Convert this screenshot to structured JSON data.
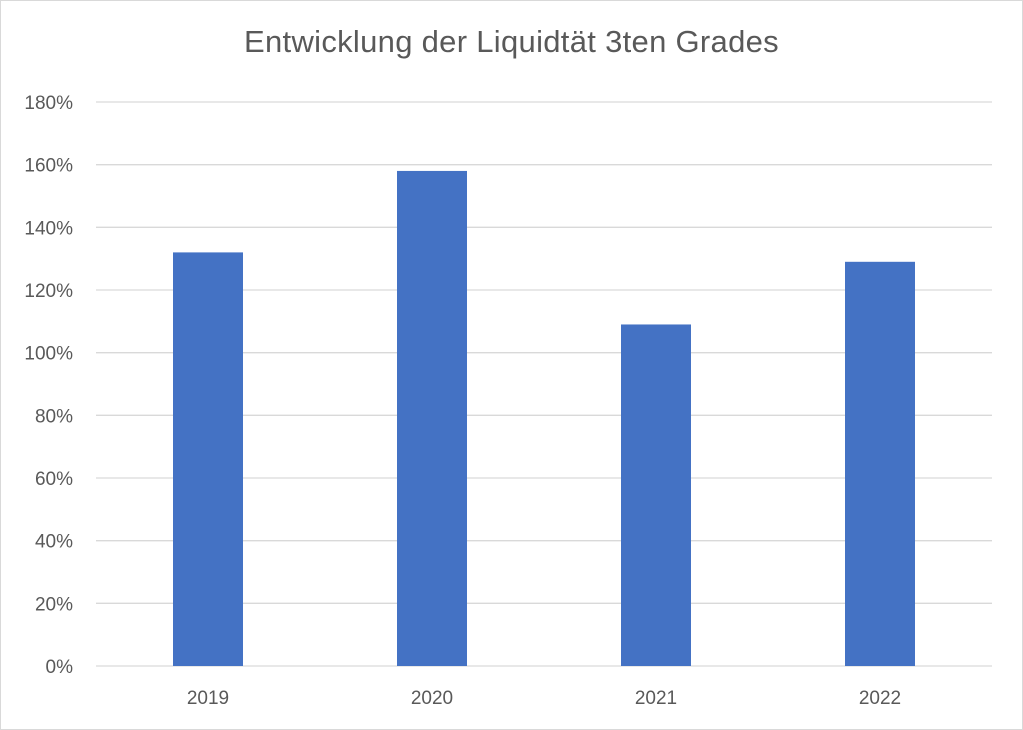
{
  "chart_data": {
    "type": "bar",
    "title": "Entwicklung der Liquidtät 3ten Grades",
    "xlabel": "",
    "ylabel": "",
    "categories": [
      "2019",
      "2020",
      "2021",
      "2022"
    ],
    "values": [
      132,
      158,
      109,
      129
    ],
    "ylim": [
      0,
      180
    ],
    "ytick_step": 20,
    "y_tick_labels": [
      "0%",
      "20%",
      "40%",
      "60%",
      "80%",
      "100%",
      "120%",
      "140%",
      "160%",
      "180%"
    ],
    "grid": true,
    "legend": "none",
    "bar_color": "#4472c4",
    "grid_color": "#d9d9d9",
    "text_color": "#595959"
  }
}
